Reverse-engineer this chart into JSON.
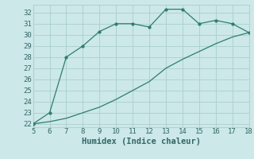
{
  "line1_x": [
    5,
    6,
    7,
    8,
    9,
    10,
    11,
    12,
    13,
    14,
    15,
    16,
    17,
    18
  ],
  "line1_y": [
    22,
    23,
    28,
    29,
    30.3,
    31,
    31,
    30.7,
    32.3,
    32.3,
    31,
    31.3,
    31,
    30.2
  ],
  "line2_x": [
    5,
    6,
    7,
    8,
    9,
    10,
    11,
    12,
    13,
    14,
    15,
    16,
    17,
    18
  ],
  "line2_y": [
    22,
    22.2,
    22.5,
    23,
    23.5,
    24.2,
    25,
    25.8,
    27,
    27.8,
    28.5,
    29.2,
    29.8,
    30.2
  ],
  "line_color": "#2e7d6e",
  "marker": "o",
  "marker_size": 2.5,
  "xlim": [
    5,
    18
  ],
  "ylim_min": 21.7,
  "ylim_max": 32.7,
  "xticks": [
    5,
    6,
    7,
    8,
    9,
    10,
    11,
    12,
    13,
    14,
    15,
    16,
    17,
    18
  ],
  "yticks": [
    22,
    23,
    24,
    25,
    26,
    27,
    28,
    29,
    30,
    31,
    32
  ],
  "xlabel": "Humidex (Indice chaleur)",
  "background_color": "#cce8e8",
  "grid_color": "#aacece",
  "label_color": "#336666",
  "xlabel_fontsize": 7.5,
  "tick_fontsize": 6.5,
  "line_width": 0.9
}
